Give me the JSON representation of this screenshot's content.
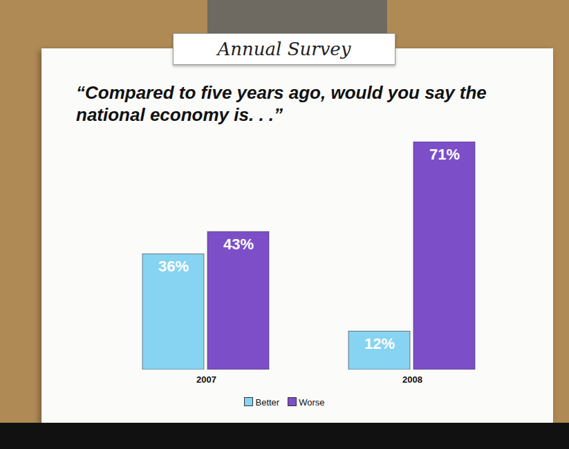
{
  "chart_data": {
    "type": "bar",
    "title": "“Compared to five years ago, would you say the national economy is. . .”",
    "annotations": [
      "Annual Survey"
    ],
    "categories": [
      "2007",
      "2008"
    ],
    "series": [
      {
        "name": "Better",
        "color": "#86d3f2",
        "values": [
          36,
          12
        ],
        "value_labels": [
          "36%",
          "12%"
        ]
      },
      {
        "name": "Worse",
        "color": "#7c4fc9",
        "values": [
          43,
          71
        ],
        "value_labels": [
          "43%",
          "71%"
        ]
      }
    ],
    "data_labels": true,
    "tick_labels": "x",
    "legend": "bottom"
  }
}
